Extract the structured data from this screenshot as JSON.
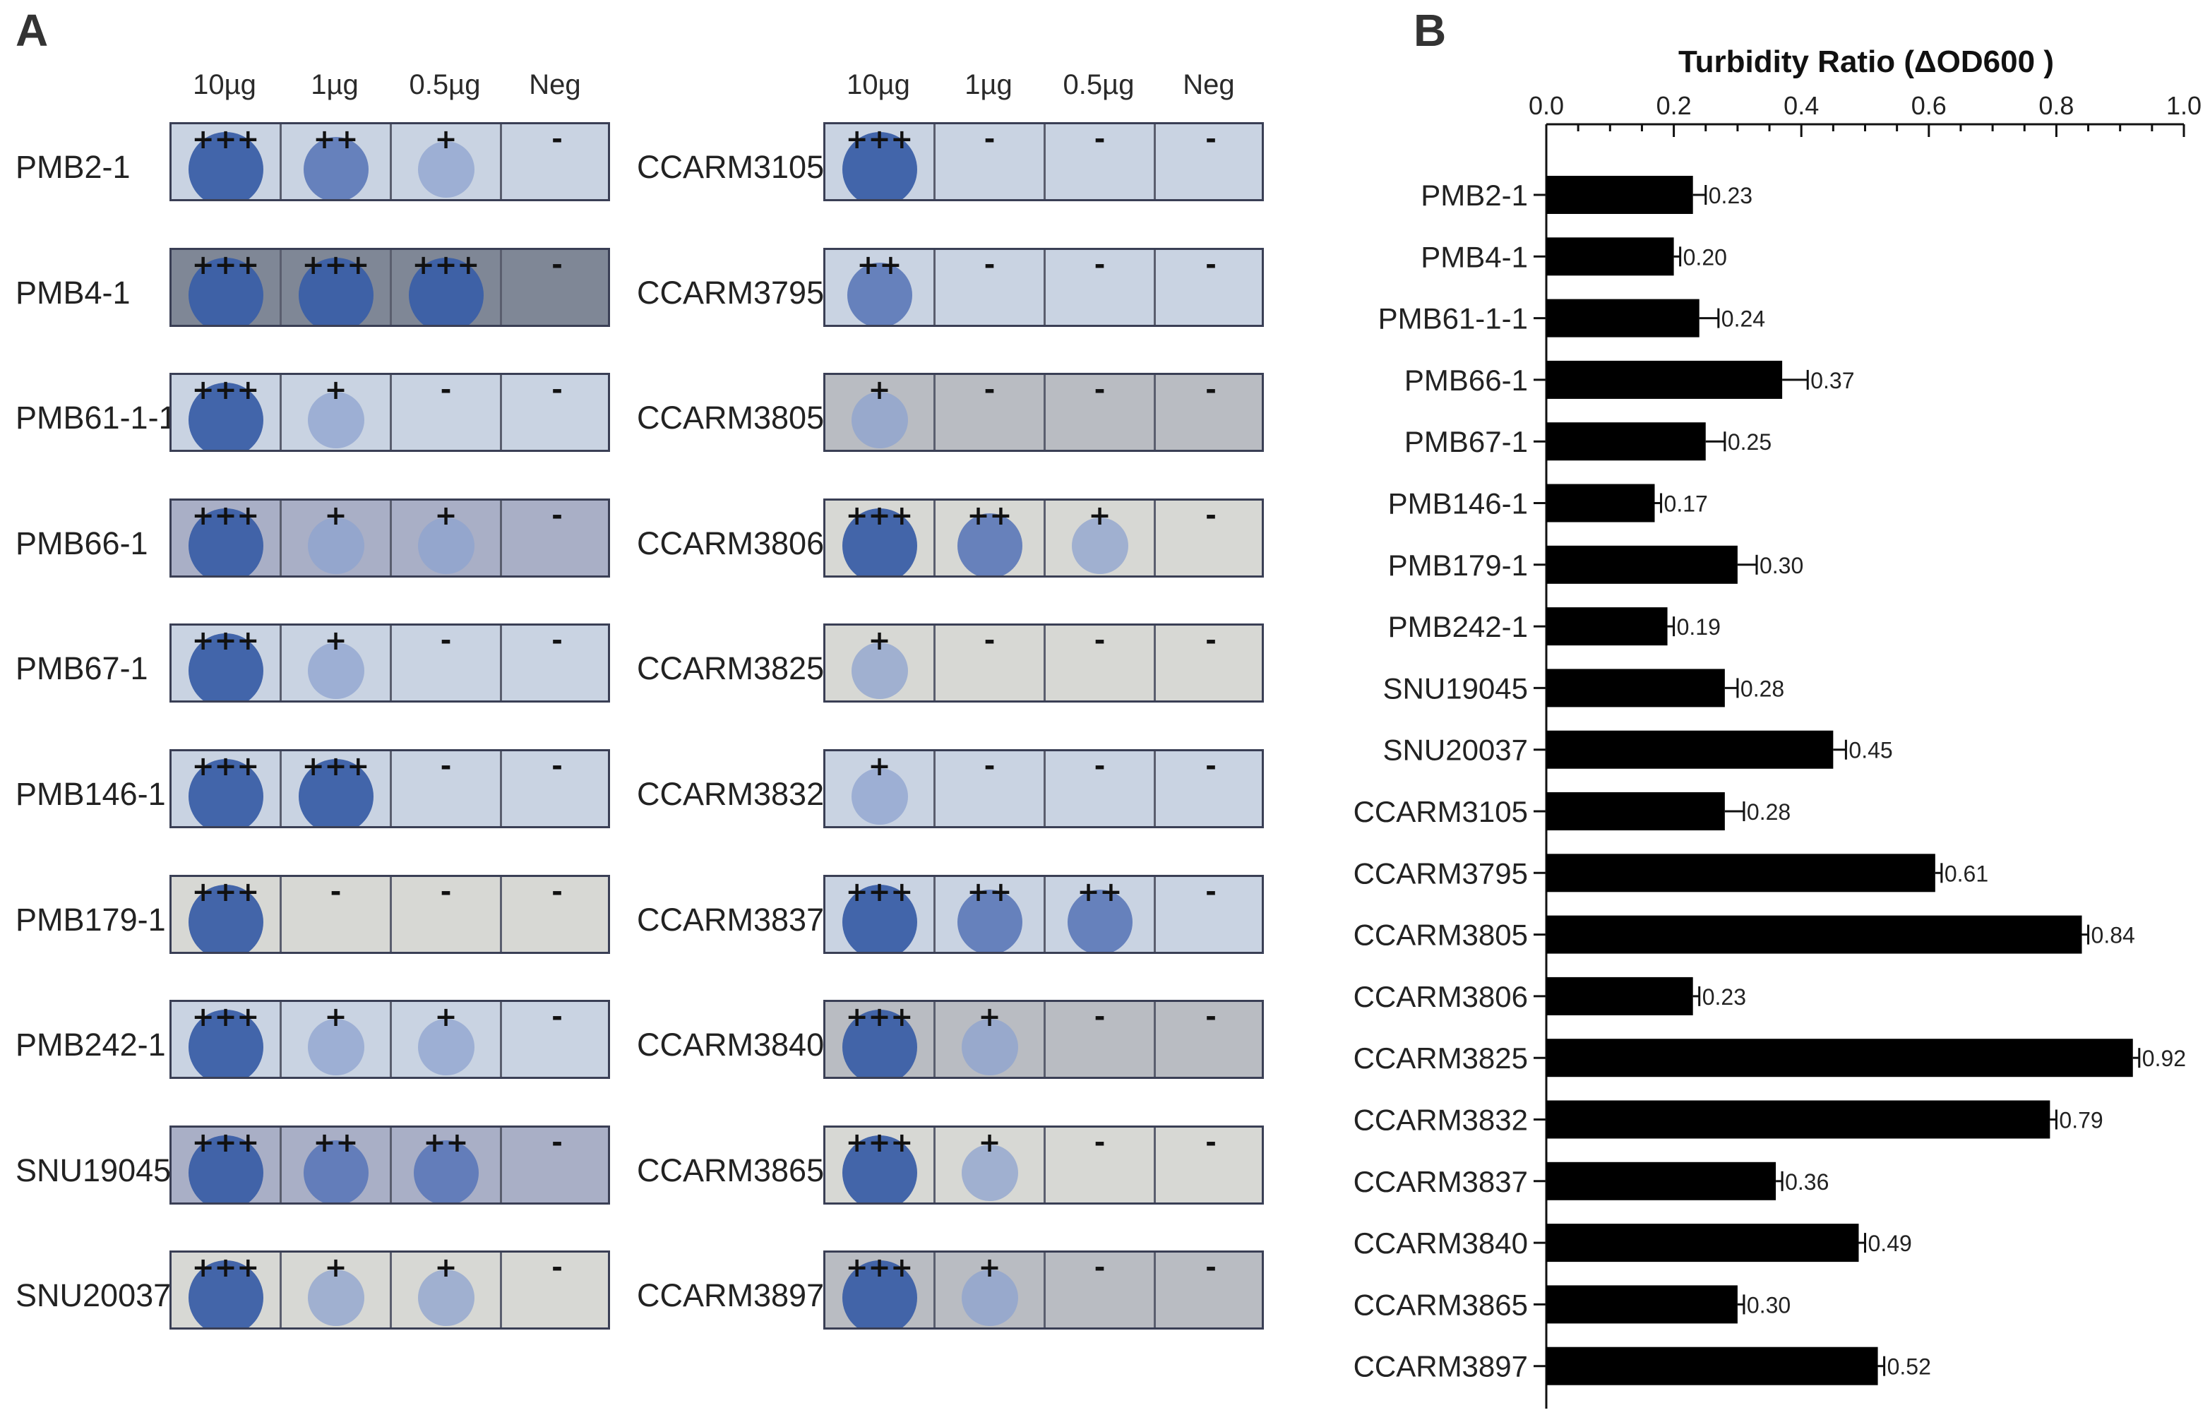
{
  "panel_a": {
    "letter": "A",
    "column_headers": [
      "10µg",
      "1µg",
      "0.5µg",
      "Neg"
    ],
    "left_strains": [
      {
        "name": "PMB2-1",
        "scores": [
          "+++",
          "++",
          "+",
          "-"
        ],
        "tone": "light"
      },
      {
        "name": "PMB4-1",
        "scores": [
          "+++",
          "+++",
          "+++",
          "-"
        ],
        "tone": "dark"
      },
      {
        "name": "PMB61-1-1",
        "scores": [
          "+++",
          "+",
          "-",
          "-"
        ],
        "tone": "light"
      },
      {
        "name": "PMB66-1",
        "scores": [
          "+++",
          "+",
          "+",
          "-"
        ],
        "tone": "mid"
      },
      {
        "name": "PMB67-1",
        "scores": [
          "+++",
          "+",
          "-",
          "-"
        ],
        "tone": "light"
      },
      {
        "name": "PMB146-1",
        "scores": [
          "+++",
          "+++",
          "-",
          "-"
        ],
        "tone": "light"
      },
      {
        "name": "PMB179-1",
        "scores": [
          "+++",
          "-",
          "-",
          "-"
        ],
        "tone": "cream"
      },
      {
        "name": "PMB242-1",
        "scores": [
          "+++",
          "+",
          "+",
          "-"
        ],
        "tone": "light"
      },
      {
        "name": "SNU19045",
        "scores": [
          "+++",
          "++",
          "++",
          "-"
        ],
        "tone": "mid"
      },
      {
        "name": "SNU20037",
        "scores": [
          "+++",
          "+",
          "+",
          "-"
        ],
        "tone": "cream"
      }
    ],
    "right_strains": [
      {
        "name": "CCARM3105",
        "scores": [
          "+++",
          "-",
          "-",
          "-"
        ],
        "tone": "light"
      },
      {
        "name": "CCARM3795",
        "scores": [
          "++",
          "-",
          "-",
          "-"
        ],
        "tone": "light"
      },
      {
        "name": "CCARM3805",
        "scores": [
          "+",
          "-",
          "-",
          "-"
        ],
        "tone": "grey"
      },
      {
        "name": "CCARM3806",
        "scores": [
          "+++",
          "++",
          "+",
          "-"
        ],
        "tone": "cream"
      },
      {
        "name": "CCARM3825",
        "scores": [
          "+",
          "-",
          "-",
          "-"
        ],
        "tone": "cream"
      },
      {
        "name": "CCARM3832",
        "scores": [
          "+",
          "-",
          "-",
          "-"
        ],
        "tone": "light"
      },
      {
        "name": "CCARM3837",
        "scores": [
          "+++",
          "++",
          "++",
          "-"
        ],
        "tone": "light"
      },
      {
        "name": "CCARM3840",
        "scores": [
          "+++",
          "+",
          "-",
          "-"
        ],
        "tone": "grey"
      },
      {
        "name": "CCARM3865",
        "scores": [
          "+++",
          "+",
          "-",
          "-"
        ],
        "tone": "cream"
      },
      {
        "name": "CCARM3897",
        "scores": [
          "+++",
          "+",
          "-",
          "-"
        ],
        "tone": "grey"
      }
    ]
  },
  "panel_b": {
    "letter": "B"
  },
  "colors": {
    "bar": "#000000",
    "spot_strong": "#3b5fa6",
    "spot_weak": "#8ea3cf",
    "plate_border": "#3a3f55"
  },
  "chart_data": {
    "type": "bar",
    "orientation": "horizontal",
    "title": "Turbidity Ratio (ΔOD600 )",
    "xlim": [
      0.0,
      1.0
    ],
    "x_ticks": [
      "0.0",
      "0.2",
      "0.4",
      "0.6",
      "0.8",
      "1.0"
    ],
    "categories": [
      "PMB2-1",
      "PMB4-1",
      "PMB61-1-1",
      "PMB66-1",
      "PMB67-1",
      "PMB146-1",
      "PMB179-1",
      "PMB242-1",
      "SNU19045",
      "SNU20037",
      "CCARM3105",
      "CCARM3795",
      "CCARM3805",
      "CCARM3806",
      "CCARM3825",
      "CCARM3832",
      "CCARM3837",
      "CCARM3840",
      "CCARM3865",
      "CCARM3897"
    ],
    "values": [
      0.23,
      0.2,
      0.24,
      0.37,
      0.25,
      0.17,
      0.3,
      0.19,
      0.28,
      0.45,
      0.28,
      0.61,
      0.84,
      0.23,
      0.92,
      0.79,
      0.36,
      0.49,
      0.3,
      0.52
    ],
    "value_labels": [
      "0.23",
      "0.20",
      "0.24",
      "0.37",
      "0.25",
      "0.17",
      "0.30",
      "0.19",
      "0.28",
      "0.45",
      "0.28",
      "0.61",
      "0.84",
      "0.23",
      "0.92",
      "0.79",
      "0.36",
      "0.49",
      "0.30",
      "0.52"
    ],
    "error": [
      0.02,
      0.01,
      0.03,
      0.04,
      0.03,
      0.01,
      0.03,
      0.01,
      0.02,
      0.02,
      0.03,
      0.01,
      0.01,
      0.01,
      0.01,
      0.01,
      0.01,
      0.01,
      0.01,
      0.01
    ],
    "grid": false,
    "legend": "none"
  }
}
